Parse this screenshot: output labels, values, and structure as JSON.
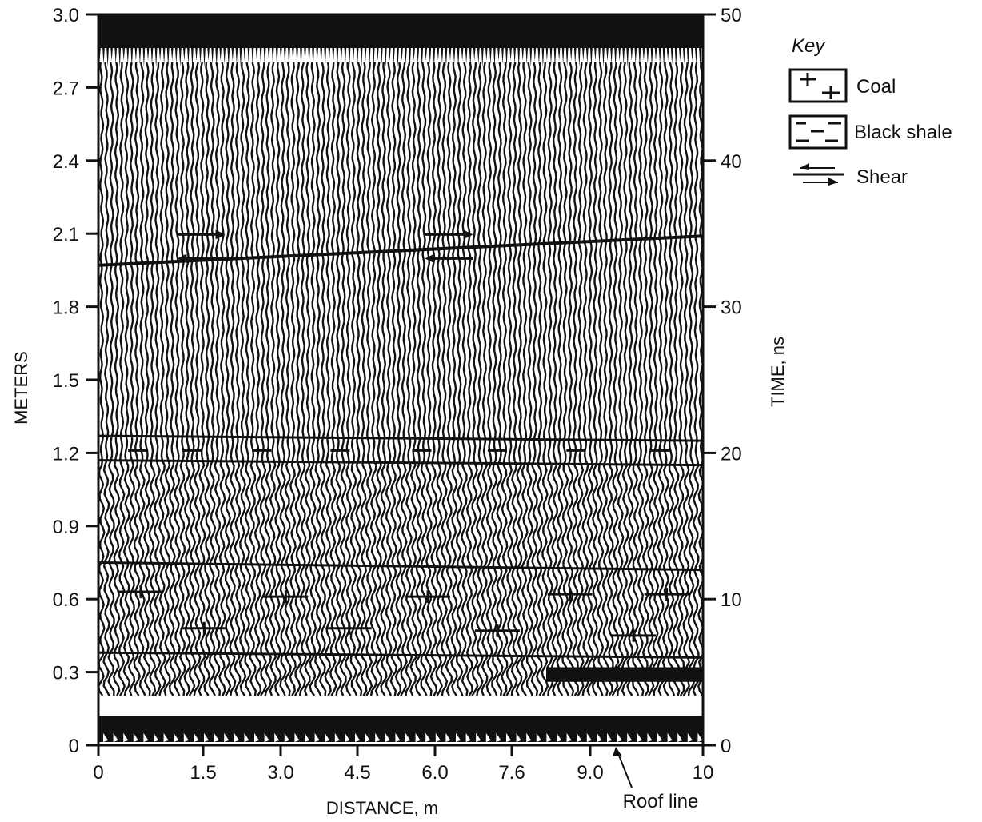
{
  "chart_data": {
    "type": "heatmap",
    "title": "",
    "xlabel": "DISTANCE, m",
    "ylabel_left": "METERS",
    "ylabel_right": "TIME, ns",
    "x_ticks": [
      "0",
      "1.5",
      "3.0",
      "4.5",
      "6.0",
      "7.6",
      "9.0",
      "10"
    ],
    "y_left_ticks": [
      "0",
      "0.3",
      "0.6",
      "0.9",
      "1.2",
      "1.5",
      "1.8",
      "2.1",
      "2.4",
      "2.7",
      "3.0"
    ],
    "y_right_ticks": [
      "0",
      "10",
      "20",
      "30",
      "40",
      "50"
    ],
    "xlim": [
      0,
      10
    ],
    "ylim_left": [
      0,
      3.0
    ],
    "ylim_right": [
      0,
      50
    ],
    "grid": false,
    "reflectors": [
      {
        "start": 1.97,
        "end": 2.09,
        "type": "shear"
      },
      {
        "start": 1.27,
        "end": 1.25,
        "type": "black-shale-top"
      },
      {
        "start": 1.17,
        "end": 1.15,
        "type": "black-shale-base"
      },
      {
        "start": 0.75,
        "end": 0.72,
        "type": "coal-top"
      },
      {
        "start": 0.38,
        "end": 0.36,
        "type": "coal-base"
      }
    ],
    "annotations": [
      {
        "text": "Roof line",
        "x": 8.6,
        "y": 0.0
      }
    ],
    "legend": {
      "title": "Key",
      "placement": "right",
      "entries": [
        {
          "label": "Coal",
          "symbol": "coal-symbol"
        },
        {
          "label": "Black shale",
          "symbol": "black-shale-symbol"
        },
        {
          "label": "Shear",
          "symbol": "shear-symbol"
        }
      ]
    }
  }
}
